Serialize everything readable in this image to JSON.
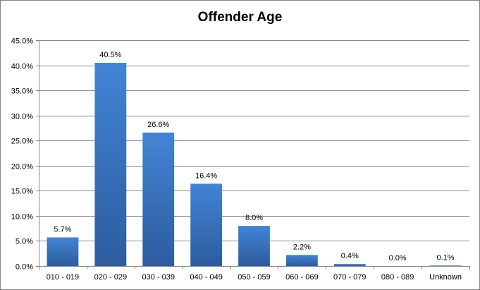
{
  "chart_data": {
    "type": "bar",
    "title": "Offender Age",
    "xlabel": "",
    "ylabel": "",
    "categories": [
      "010 - 019",
      "020 - 029",
      "030 - 039",
      "040 - 049",
      "050 - 059",
      "060 - 069",
      "070 - 079",
      "080 - 089",
      "Unknown"
    ],
    "values": [
      5.7,
      40.5,
      26.6,
      16.4,
      8.0,
      2.2,
      0.4,
      0.0,
      0.1
    ],
    "data_labels": [
      "5.7%",
      "40.5%",
      "26.6%",
      "16.4%",
      "8.0%",
      "2.2%",
      "0.4%",
      "0.0%",
      "0.1%"
    ],
    "ylim": [
      0,
      45
    ],
    "yticks": [
      0,
      5,
      10,
      15,
      20,
      25,
      30,
      35,
      40,
      45
    ],
    "ytick_labels": [
      "0.0%",
      "5.0%",
      "10.0%",
      "15.0%",
      "20.0%",
      "25.0%",
      "30.0%",
      "35.0%",
      "40.0%",
      "45.0%"
    ],
    "grid": true,
    "legend": "none",
    "bar_color": "#3a72c0"
  }
}
